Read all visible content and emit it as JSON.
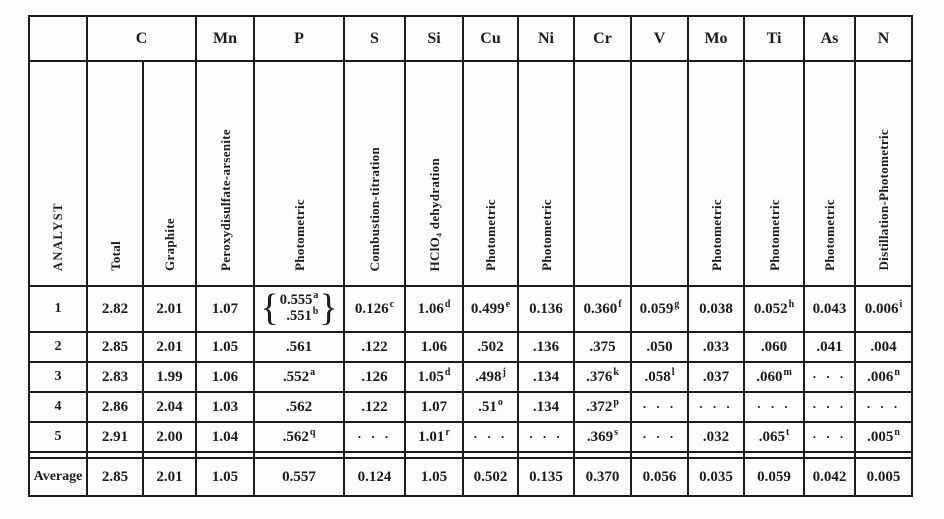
{
  "colors": {
    "ink": "#1b1b1b",
    "paper": "#fdfdfb",
    "rule": "#1c1c1c"
  },
  "table": {
    "element_row": [
      {
        "label": "",
        "span": 1
      },
      {
        "label": "C",
        "span": 2
      },
      {
        "label": "Mn",
        "span": 1
      },
      {
        "label": "P",
        "span": 1
      },
      {
        "label": "S",
        "span": 1
      },
      {
        "label": "Si",
        "span": 1
      },
      {
        "label": "Cu",
        "span": 1
      },
      {
        "label": "Ni",
        "span": 1
      },
      {
        "label": "Cr",
        "span": 1
      },
      {
        "label": "V",
        "span": 1
      },
      {
        "label": "Mo",
        "span": 1
      },
      {
        "label": "Ti",
        "span": 1
      },
      {
        "label": "As",
        "span": 1
      },
      {
        "label": "N",
        "span": 1
      }
    ],
    "method_row": [
      "ANALYST",
      "Total",
      "Graphite",
      "Peroxydisulfate-arsenite",
      "Photometric",
      "Combustion-titration",
      "HClO₄ dehydration",
      "Photometric",
      "Photometric",
      "",
      "",
      "Photometric",
      "Photometric",
      "Photometric",
      "Distillation-Photometric"
    ],
    "dots_glyph": "· · ·",
    "rows": [
      {
        "analyst": "1",
        "cells": [
          {
            "v": "2.82"
          },
          {
            "v": "2.01"
          },
          {
            "v": "1.07"
          },
          {
            "brace": [
              {
                "v": "0.555",
                "sup": "a"
              },
              {
                "v": ".551",
                "sup": "b"
              }
            ]
          },
          {
            "v": "0.126",
            "sup": "c"
          },
          {
            "v": "1.06",
            "sup": "d"
          },
          {
            "v": "0.499",
            "sup": "e"
          },
          {
            "v": "0.136"
          },
          {
            "v": "0.360",
            "sup": "f"
          },
          {
            "v": "0.059",
            "sup": "g"
          },
          {
            "v": "0.038"
          },
          {
            "v": "0.052",
            "sup": "h"
          },
          {
            "v": "0.043"
          },
          {
            "v": "0.006",
            "sup": "i"
          }
        ]
      },
      {
        "analyst": "2",
        "cells": [
          {
            "v": "2.85"
          },
          {
            "v": "2.01"
          },
          {
            "v": "1.05"
          },
          {
            "v": ".561"
          },
          {
            "v": ".122"
          },
          {
            "v": "1.06"
          },
          {
            "v": ".502"
          },
          {
            "v": ".136"
          },
          {
            "v": ".375"
          },
          {
            "v": ".050"
          },
          {
            "v": ".033"
          },
          {
            "v": ".060"
          },
          {
            "v": ".041"
          },
          {
            "v": ".004"
          }
        ]
      },
      {
        "analyst": "3",
        "cells": [
          {
            "v": "2.83"
          },
          {
            "v": "1.99"
          },
          {
            "v": "1.06"
          },
          {
            "v": ".552",
            "sup": "a"
          },
          {
            "v": ".126"
          },
          {
            "v": "1.05",
            "sup": "d"
          },
          {
            "v": ".498",
            "sup": "j"
          },
          {
            "v": ".134"
          },
          {
            "v": ".376",
            "sup": "k"
          },
          {
            "v": ".058",
            "sup": "l"
          },
          {
            "v": ".037"
          },
          {
            "v": ".060",
            "sup": "m"
          },
          {
            "dots": true
          },
          {
            "v": ".006",
            "sup": "n"
          }
        ]
      },
      {
        "analyst": "4",
        "cells": [
          {
            "v": "2.86"
          },
          {
            "v": "2.04"
          },
          {
            "v": "1.03"
          },
          {
            "v": ".562"
          },
          {
            "v": ".122"
          },
          {
            "v": "1.07"
          },
          {
            "v": ".51",
            "sup": "o"
          },
          {
            "v": ".134"
          },
          {
            "v": ".372",
            "sup": "p"
          },
          {
            "dots": true
          },
          {
            "dots": true
          },
          {
            "dots": true
          },
          {
            "dots": true
          },
          {
            "dots": true
          }
        ]
      },
      {
        "analyst": "5",
        "cells": [
          {
            "v": "2.91"
          },
          {
            "v": "2.00"
          },
          {
            "v": "1.04"
          },
          {
            "v": ".562",
            "sup": "q"
          },
          {
            "dots": true
          },
          {
            "v": "1.01",
            "sup": "r"
          },
          {
            "dots": true
          },
          {
            "dots": true
          },
          {
            "v": ".369",
            "sup": "s"
          },
          {
            "dots": true
          },
          {
            "v": ".032"
          },
          {
            "v": ".065",
            "sup": "t"
          },
          {
            "dots": true
          },
          {
            "v": ".005",
            "sup": "n"
          }
        ]
      }
    ],
    "average_label": "Average",
    "average_cells": [
      {
        "v": "2.85"
      },
      {
        "v": "2.01"
      },
      {
        "v": "1.05"
      },
      {
        "v": "0.557"
      },
      {
        "v": "0.124"
      },
      {
        "v": "1.05"
      },
      {
        "v": "0.502"
      },
      {
        "v": "0.135"
      },
      {
        "v": "0.370"
      },
      {
        "v": "0.056"
      },
      {
        "v": "0.035"
      },
      {
        "v": "0.059"
      },
      {
        "v": "0.042"
      },
      {
        "v": "0.005"
      }
    ]
  }
}
